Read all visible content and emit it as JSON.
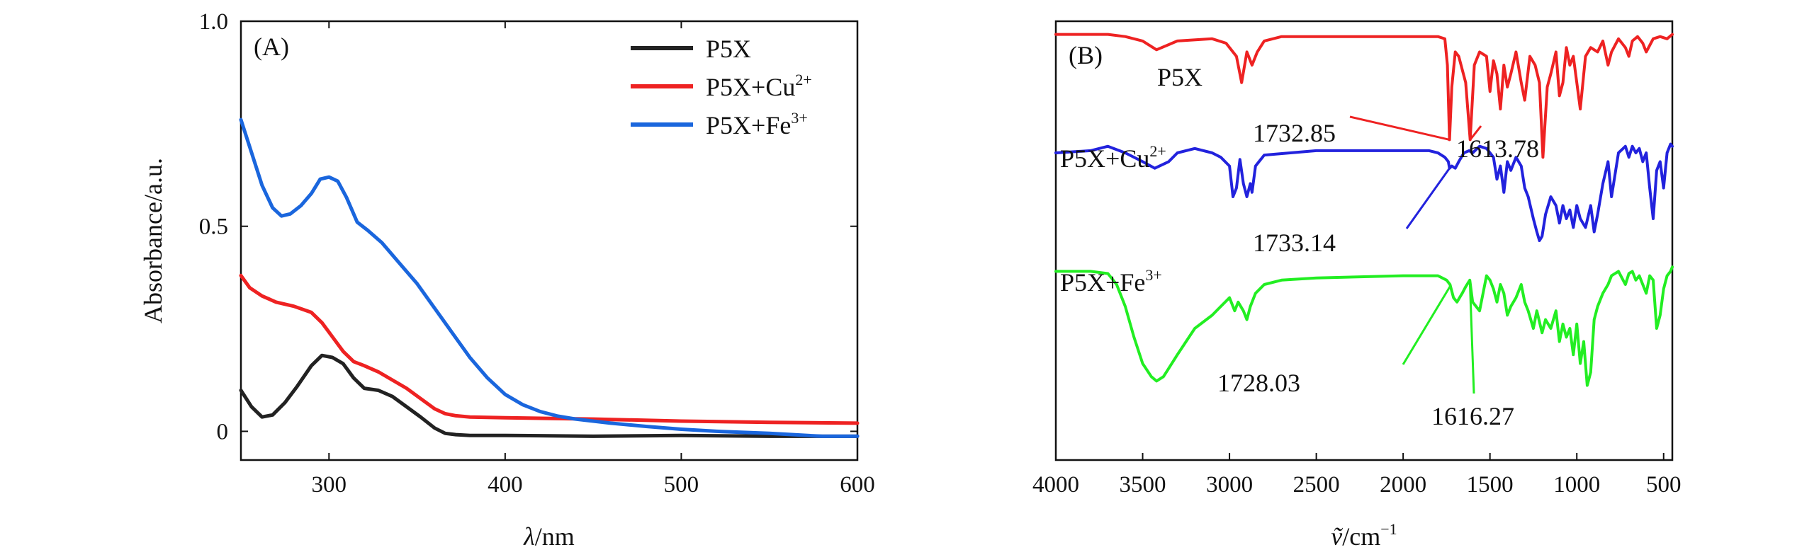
{
  "chart_data": [
    {
      "type": "line",
      "panel_label": "(A)",
      "xlabel_symbol": "λ",
      "xlabel_unit": "/nm",
      "ylabel": "Absorbance/a.u.",
      "xlim": [
        250,
        600
      ],
      "ylim": [
        -0.07,
        1.0
      ],
      "x_ticks": [
        300,
        400,
        500,
        600
      ],
      "x_tick_labels": [
        "300",
        "400",
        "500",
        "600"
      ],
      "y_ticks": [
        0,
        0.5,
        1.0
      ],
      "y_tick_labels": [
        "0",
        "0.5",
        "1.0"
      ],
      "legend_position": "top-right",
      "series": [
        {
          "name": "P5X",
          "name_base": "P5X",
          "name_sup": "",
          "color": "#222222",
          "x": [
            250,
            256,
            262,
            268,
            275,
            282,
            290,
            296,
            302,
            308,
            314,
            320,
            328,
            336,
            344,
            352,
            360,
            366,
            372,
            380,
            400,
            450,
            500,
            550,
            600
          ],
          "y": [
            0.1,
            0.06,
            0.035,
            0.04,
            0.07,
            0.11,
            0.16,
            0.185,
            0.18,
            0.165,
            0.13,
            0.105,
            0.1,
            0.085,
            0.06,
            0.035,
            0.008,
            -0.005,
            -0.008,
            -0.01,
            -0.01,
            -0.012,
            -0.01,
            -0.012,
            -0.012
          ]
        },
        {
          "name": "P5X+Cu2+",
          "name_base": "P5X+Cu",
          "name_sup": "2+",
          "color": "#ee2222",
          "x": [
            250,
            255,
            262,
            270,
            280,
            290,
            296,
            302,
            308,
            314,
            320,
            328,
            336,
            344,
            352,
            360,
            366,
            372,
            380,
            400,
            450,
            500,
            550,
            600
          ],
          "y": [
            0.38,
            0.35,
            0.33,
            0.315,
            0.305,
            0.29,
            0.265,
            0.23,
            0.195,
            0.17,
            0.16,
            0.145,
            0.125,
            0.105,
            0.08,
            0.055,
            0.043,
            0.038,
            0.035,
            0.033,
            0.03,
            0.025,
            0.022,
            0.02
          ]
        },
        {
          "name": "P5X+Fe3+",
          "name_base": "P5X+Fe",
          "name_sup": "3+",
          "color": "#1a66dd",
          "x": [
            250,
            256,
            262,
            268,
            273,
            278,
            284,
            290,
            295,
            300,
            305,
            310,
            316,
            322,
            330,
            340,
            350,
            360,
            370,
            380,
            390,
            400,
            410,
            420,
            430,
            440,
            450,
            460,
            480,
            500,
            520,
            550,
            580,
            600
          ],
          "y": [
            0.76,
            0.68,
            0.6,
            0.545,
            0.525,
            0.53,
            0.55,
            0.58,
            0.615,
            0.62,
            0.61,
            0.57,
            0.51,
            0.49,
            0.46,
            0.41,
            0.36,
            0.3,
            0.24,
            0.18,
            0.13,
            0.09,
            0.065,
            0.048,
            0.037,
            0.03,
            0.025,
            0.02,
            0.012,
            0.005,
            0.0,
            -0.005,
            -0.012,
            -0.012
          ]
        }
      ]
    },
    {
      "type": "line",
      "panel_label": "(B)",
      "xlabel_symbol": "ṽ",
      "xlabel_unit": "/cm",
      "xlabel_unit_sup": "−1",
      "ylabel": "",
      "xlim": [
        4000,
        450
      ],
      "ylim": [
        0,
        1
      ],
      "x_ticks": [
        4000,
        3500,
        3000,
        2500,
        2000,
        1500,
        1000,
        500
      ],
      "x_tick_labels": [
        "4000",
        "3500",
        "3000",
        "2500",
        "2000",
        "1500",
        "1000",
        "500"
      ],
      "y_axis_ticks_shown": false,
      "series": [
        {
          "name": "P5X",
          "label_base": "P5X",
          "label_sup": "",
          "color": "#ee2222",
          "x": [
            4000,
            3700,
            3600,
            3500,
            3420,
            3300,
            3100,
            3020,
            2960,
            2930,
            2900,
            2870,
            2840,
            2800,
            2700,
            2000,
            1800,
            1760,
            1745,
            1733,
            1720,
            1700,
            1680,
            1640,
            1614,
            1590,
            1560,
            1520,
            1500,
            1480,
            1460,
            1440,
            1420,
            1400,
            1380,
            1350,
            1320,
            1300,
            1270,
            1240,
            1215,
            1195,
            1170,
            1150,
            1120,
            1100,
            1080,
            1060,
            1040,
            1020,
            1000,
            980,
            950,
            920,
            880,
            850,
            820,
            800,
            760,
            720,
            700,
            680,
            650,
            620,
            600,
            560,
            520,
            480,
            450
          ],
          "y": [
            0.97,
            0.97,
            0.965,
            0.955,
            0.935,
            0.955,
            0.96,
            0.95,
            0.92,
            0.86,
            0.93,
            0.9,
            0.93,
            0.955,
            0.965,
            0.965,
            0.965,
            0.96,
            0.9,
            0.73,
            0.85,
            0.93,
            0.92,
            0.86,
            0.73,
            0.9,
            0.93,
            0.92,
            0.84,
            0.91,
            0.88,
            0.8,
            0.9,
            0.85,
            0.88,
            0.93,
            0.86,
            0.82,
            0.92,
            0.9,
            0.86,
            0.69,
            0.85,
            0.88,
            0.93,
            0.83,
            0.86,
            0.94,
            0.9,
            0.92,
            0.86,
            0.8,
            0.92,
            0.94,
            0.93,
            0.955,
            0.9,
            0.93,
            0.96,
            0.94,
            0.92,
            0.955,
            0.965,
            0.95,
            0.93,
            0.96,
            0.965,
            0.96,
            0.97
          ]
        },
        {
          "name": "P5X+Cu2+",
          "label_base": "P5X+Cu",
          "label_sup": "2+",
          "color": "#2222dd",
          "x": [
            4000,
            3800,
            3700,
            3600,
            3500,
            3430,
            3350,
            3300,
            3200,
            3100,
            3050,
            3000,
            2980,
            2960,
            2940,
            2920,
            2900,
            2880,
            2870,
            2850,
            2800,
            2500,
            2000,
            1850,
            1800,
            1760,
            1740,
            1733,
            1720,
            1700,
            1680,
            1650,
            1620,
            1600,
            1560,
            1520,
            1500,
            1480,
            1460,
            1440,
            1420,
            1400,
            1380,
            1350,
            1320,
            1300,
            1280,
            1250,
            1230,
            1215,
            1200,
            1180,
            1150,
            1120,
            1100,
            1080,
            1060,
            1040,
            1020,
            1000,
            980,
            950,
            920,
            900,
            880,
            850,
            820,
            800,
            760,
            720,
            700,
            680,
            660,
            640,
            620,
            600,
            580,
            560,
            540,
            520,
            500,
            480,
            460,
            450
          ],
          "y": [
            0.7,
            0.705,
            0.715,
            0.7,
            0.68,
            0.665,
            0.68,
            0.7,
            0.71,
            0.7,
            0.69,
            0.67,
            0.6,
            0.62,
            0.685,
            0.63,
            0.6,
            0.63,
            0.61,
            0.67,
            0.695,
            0.705,
            0.705,
            0.705,
            0.7,
            0.69,
            0.68,
            0.665,
            0.67,
            0.665,
            0.68,
            0.7,
            0.705,
            0.7,
            0.715,
            0.71,
            0.7,
            0.69,
            0.64,
            0.67,
            0.61,
            0.68,
            0.66,
            0.69,
            0.67,
            0.62,
            0.6,
            0.55,
            0.52,
            0.5,
            0.51,
            0.56,
            0.6,
            0.58,
            0.54,
            0.58,
            0.55,
            0.57,
            0.53,
            0.58,
            0.55,
            0.53,
            0.58,
            0.52,
            0.56,
            0.63,
            0.68,
            0.6,
            0.7,
            0.715,
            0.69,
            0.715,
            0.7,
            0.71,
            0.68,
            0.7,
            0.62,
            0.55,
            0.66,
            0.68,
            0.62,
            0.7,
            0.72,
            0.715
          ]
        },
        {
          "name": "P5X+Fe3+",
          "label_base": "P5X+Fe",
          "label_sup": "3+",
          "color": "#22ee22",
          "x": [
            4000,
            3800,
            3700,
            3650,
            3600,
            3550,
            3500,
            3450,
            3420,
            3380,
            3300,
            3200,
            3100,
            3050,
            3000,
            2970,
            2950,
            2920,
            2900,
            2880,
            2850,
            2800,
            2700,
            2500,
            2000,
            1800,
            1750,
            1730,
            1710,
            1690,
            1660,
            1640,
            1616,
            1600,
            1560,
            1540,
            1520,
            1500,
            1480,
            1460,
            1440,
            1420,
            1400,
            1380,
            1350,
            1320,
            1300,
            1280,
            1250,
            1230,
            1200,
            1180,
            1150,
            1120,
            1100,
            1080,
            1060,
            1040,
            1020,
            1000,
            980,
            960,
            940,
            920,
            900,
            880,
            850,
            820,
            800,
            760,
            720,
            700,
            680,
            660,
            640,
            620,
            600,
            580,
            560,
            540,
            520,
            500,
            480,
            460,
            450
          ],
          "y": [
            0.43,
            0.43,
            0.425,
            0.4,
            0.35,
            0.28,
            0.22,
            0.19,
            0.18,
            0.19,
            0.24,
            0.3,
            0.33,
            0.35,
            0.37,
            0.34,
            0.36,
            0.34,
            0.32,
            0.35,
            0.38,
            0.4,
            0.41,
            0.415,
            0.42,
            0.42,
            0.41,
            0.4,
            0.37,
            0.36,
            0.38,
            0.395,
            0.41,
            0.36,
            0.34,
            0.38,
            0.42,
            0.41,
            0.39,
            0.36,
            0.4,
            0.38,
            0.33,
            0.35,
            0.37,
            0.4,
            0.36,
            0.34,
            0.3,
            0.34,
            0.29,
            0.32,
            0.3,
            0.34,
            0.27,
            0.31,
            0.28,
            0.3,
            0.24,
            0.31,
            0.22,
            0.27,
            0.17,
            0.2,
            0.32,
            0.35,
            0.38,
            0.4,
            0.42,
            0.43,
            0.4,
            0.425,
            0.43,
            0.41,
            0.42,
            0.4,
            0.38,
            0.42,
            0.41,
            0.3,
            0.33,
            0.39,
            0.42,
            0.43,
            0.44
          ]
        }
      ],
      "annotations": [
        {
          "text": "1732.85",
          "series": "P5X",
          "target_x": 1733
        },
        {
          "text": "1613.78",
          "series": "P5X",
          "target_x": 1614
        },
        {
          "text": "1733.14",
          "series": "P5X+Cu2+",
          "target_x": 1733
        },
        {
          "text": "1728.03",
          "series": "P5X+Fe3+",
          "target_x": 1728
        },
        {
          "text": "1616.27",
          "series": "P5X+Fe3+",
          "target_x": 1616
        }
      ]
    }
  ]
}
